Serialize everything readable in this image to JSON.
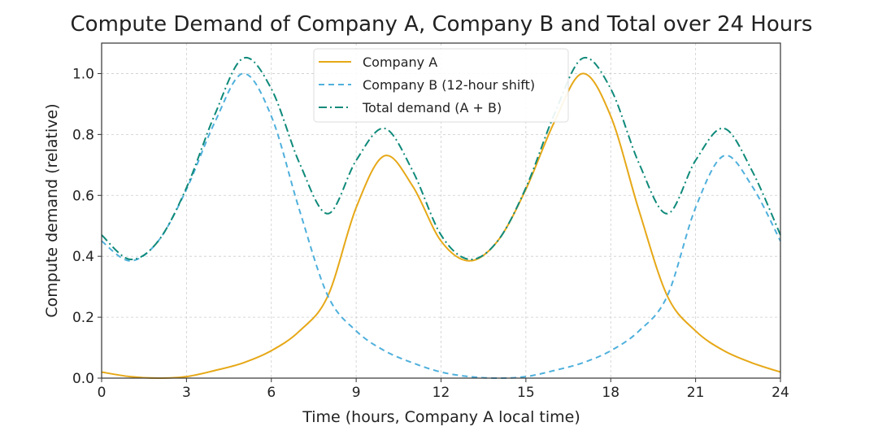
{
  "chart_data": {
    "type": "line",
    "title": "Compute Demand of Company A, Company B and Total over 24 Hours",
    "xlabel": "Time (hours, Company A local time)",
    "ylabel": "Compute demand (relative)",
    "xlim": [
      0,
      24
    ],
    "ylim": [
      0,
      1.1
    ],
    "xticks": [
      0,
      3,
      6,
      9,
      12,
      15,
      18,
      21,
      24
    ],
    "yticks": [
      "0.0",
      "0.2",
      "0.4",
      "0.6",
      "0.8",
      "1.0"
    ],
    "grid": true,
    "legend_position": "top-center",
    "x": [
      0,
      1,
      2,
      3,
      4,
      5,
      6,
      7,
      8,
      9,
      10,
      11,
      12,
      13,
      14,
      15,
      16,
      17,
      18,
      19,
      20,
      21,
      22,
      23,
      24
    ],
    "series": [
      {
        "name": "Company A",
        "color": "#e6a817",
        "style": "solid",
        "values": [
          0.02,
          0.005,
          0,
          0.005,
          0.025,
          0.05,
          0.09,
          0.155,
          0.27,
          0.56,
          0.73,
          0.63,
          0.45,
          0.385,
          0.45,
          0.62,
          0.84,
          1.0,
          0.86,
          0.55,
          0.27,
          0.155,
          0.09,
          0.05,
          0.02
        ]
      },
      {
        "name": "Company B (12-hour shift)",
        "color": "#4fb0dc",
        "style": "dashed",
        "values": [
          0.45,
          0.385,
          0.45,
          0.62,
          0.84,
          1.0,
          0.86,
          0.55,
          0.27,
          0.155,
          0.09,
          0.05,
          0.02,
          0.005,
          0,
          0.005,
          0.025,
          0.05,
          0.09,
          0.155,
          0.27,
          0.56,
          0.73,
          0.63,
          0.45
        ]
      },
      {
        "name": "Total demand (A + B)",
        "color": "#0f8a7a",
        "style": "dashdot",
        "values": [
          0.47,
          0.39,
          0.45,
          0.625,
          0.865,
          1.05,
          0.95,
          0.705,
          0.54,
          0.715,
          0.82,
          0.68,
          0.47,
          0.39,
          0.45,
          0.625,
          0.865,
          1.05,
          0.95,
          0.705,
          0.54,
          0.715,
          0.82,
          0.68,
          0.47
        ]
      }
    ]
  }
}
